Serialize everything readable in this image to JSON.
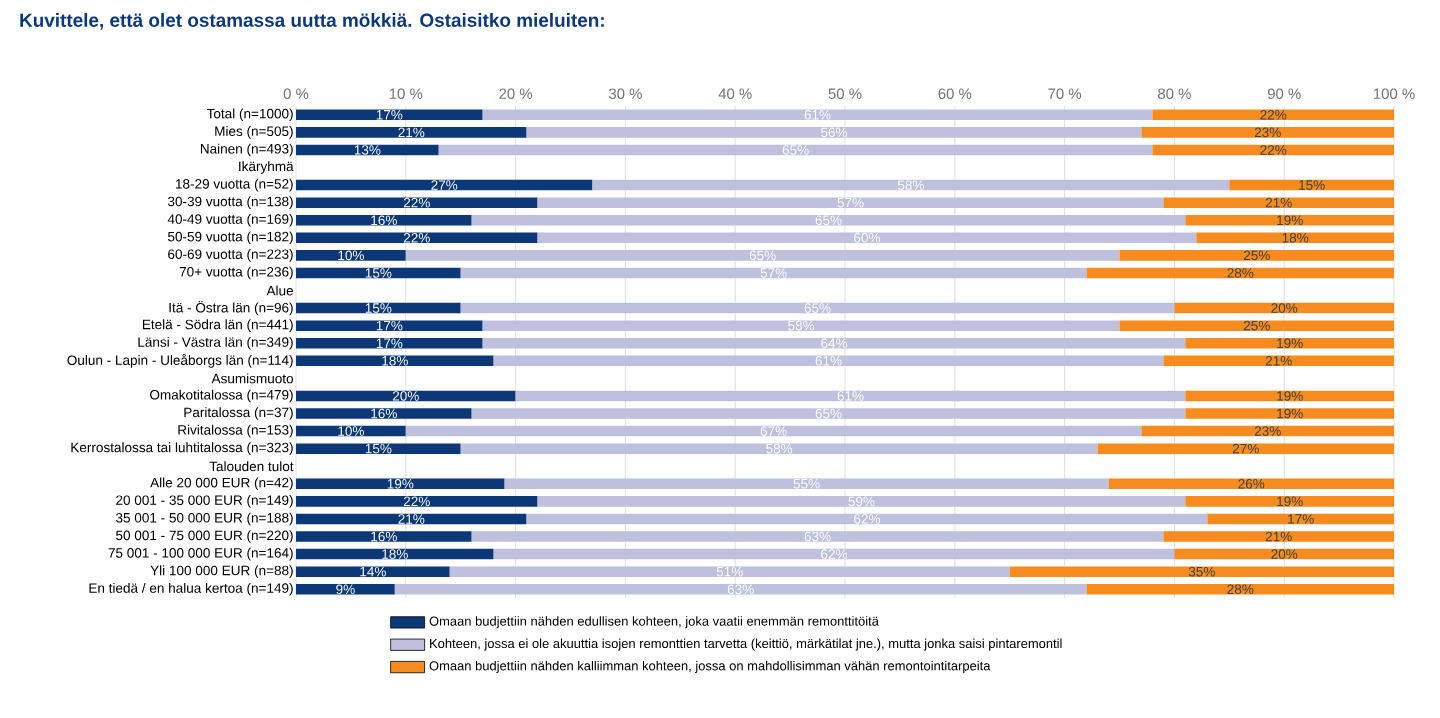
{
  "chart_data": {
    "type": "bar",
    "orientation": "horizontal",
    "stacked": true,
    "title": "Kuvittele, että olet ostamassa uutta mökkiä. Ostaisitko mieluiten:",
    "categories": [
      "Total (n=1000)",
      "Mies (n=505)",
      "Nainen (n=493)",
      "Ikäryhmä",
      "18-29 vuotta (n=52)",
      "30-39 vuotta (n=138)",
      "40-49 vuotta (n=169)",
      "50-59 vuotta (n=182)",
      "60-69 vuotta (n=223)",
      "70+ vuotta (n=236)",
      "Alue",
      "Itä - Östra län (n=96)",
      "Etelä - Södra län (n=441)",
      "Länsi - Västra län (n=349)",
      "Oulun - Lapin - Uleåborgs län (n=114)",
      "Asumismuoto",
      "Omakotitalossa (n=479)",
      "Paritalossa (n=37)",
      "Rivitalossa (n=153)",
      "Kerrostalossa tai luhtitalossa (n=323)",
      "Talouden tulot",
      "Alle 20 000 EUR (n=42)",
      "20 001 - 35 000 EUR (n=149)",
      "35 001 - 50 000 EUR (n=188)",
      "50 001 - 75 000 EUR (n=220)",
      "75 001 - 100 000 EUR (n=164)",
      "Yli 100 000 EUR (n=88)",
      "En tiedä / en halua kertoa (n=149)"
    ],
    "series": [
      {
        "name": "Omaan budjettiin nähden edullisen kohteen, joka vaatii enemmän remonttitöitä",
        "color": "#0d3878",
        "values": [
          17,
          21,
          13,
          null,
          27,
          22,
          16,
          22,
          10,
          15,
          null,
          15,
          17,
          17,
          18,
          null,
          20,
          16,
          10,
          15,
          null,
          19,
          22,
          21,
          16,
          18,
          14,
          9
        ],
        "value_labels": [
          "17%",
          "21%",
          "13%",
          null,
          "27%",
          "22%",
          "16%",
          "22%",
          "10%",
          "15%",
          null,
          "15%",
          "17%",
          "17%",
          "18%",
          null,
          "20%",
          "16%",
          "10%",
          "15%",
          null,
          "19%",
          "22%",
          "21%",
          "16%",
          "18%",
          "14%",
          "9%"
        ]
      },
      {
        "name": "Kohteen, jossa ei ole akuuttia isojen remonttien tarvetta (keittiö, märkätilat jne.), mutta jonka saisi pintaremontil",
        "color": "#bec0dd",
        "values": [
          61,
          56,
          65,
          null,
          58,
          57,
          65,
          60,
          65,
          57,
          null,
          65,
          58,
          64,
          61,
          null,
          61,
          65,
          67,
          58,
          null,
          55,
          59,
          62,
          63,
          62,
          51,
          63
        ],
        "value_labels": [
          "61%",
          "56%",
          "65%",
          null,
          "58%",
          "57%",
          "65%",
          "60%",
          "65%",
          "57%",
          null,
          "65%",
          "58%",
          "64%",
          "61%",
          null,
          "61%",
          "65%",
          "67%",
          "58%",
          null,
          "55%",
          "59%",
          "62%",
          "63%",
          "62%",
          "51%",
          "63%"
        ]
      },
      {
        "name": "Omaan budjettiin nähden kalliimman kohteen, jossa on mahdollisimman vähän remontointitarpeita",
        "color": "#f68b1f",
        "values": [
          22,
          23,
          22,
          null,
          15,
          21,
          19,
          18,
          25,
          28,
          null,
          20,
          25,
          19,
          21,
          null,
          19,
          19,
          23,
          27,
          null,
          26,
          19,
          17,
          21,
          20,
          35,
          28
        ],
        "value_labels": [
          "22%",
          "23%",
          "22%",
          null,
          "15%",
          "21%",
          "19%",
          "18%",
          "25%",
          "28%",
          null,
          "20%",
          "25%",
          "19%",
          "21%",
          null,
          "19%",
          "19%",
          "23%",
          "27%",
          null,
          "26%",
          "19%",
          "17%",
          "21%",
          "20%",
          "35%",
          "28%"
        ]
      }
    ],
    "xlim": [
      0,
      100
    ],
    "xticks": [
      {
        "value": 0,
        "label": "0 %"
      },
      {
        "value": 10,
        "label": "10 %"
      },
      {
        "value": 20,
        "label": "20 %"
      },
      {
        "value": 30,
        "label": "30 %"
      },
      {
        "value": 40,
        "label": "40 %"
      },
      {
        "value": 50,
        "label": "50 %"
      },
      {
        "value": 60,
        "label": "60 %"
      },
      {
        "value": 70,
        "label": "70 %"
      },
      {
        "value": 80,
        "label": "80 %"
      },
      {
        "value": 90,
        "label": "90 %"
      },
      {
        "value": 100,
        "label": "100 %"
      }
    ],
    "grid": "x",
    "legend": "bottom"
  }
}
